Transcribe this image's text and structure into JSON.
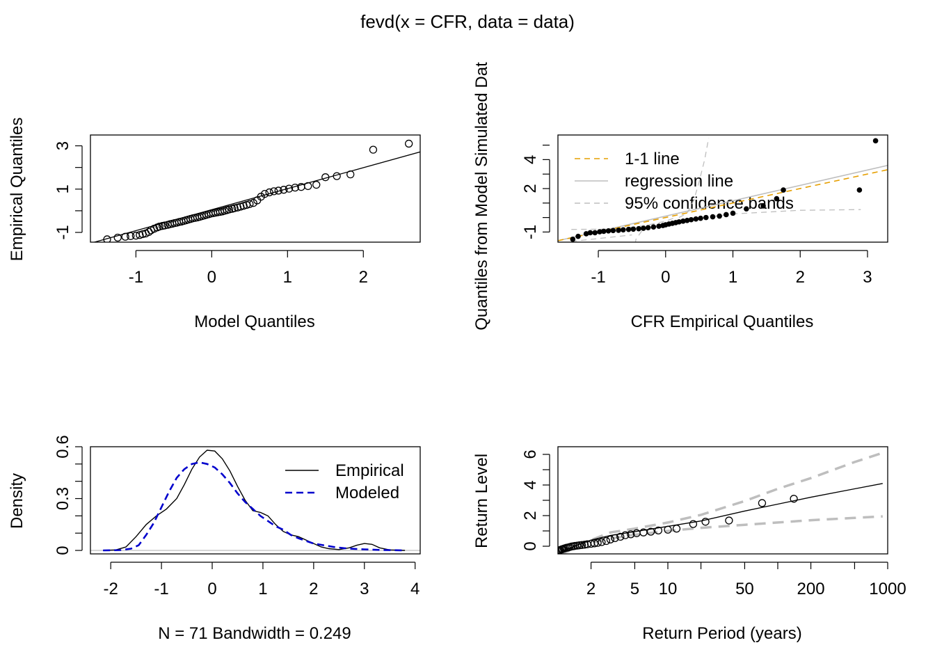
{
  "title": "fevd(x = CFR, data = data)",
  "colors": {
    "one_to_one": "#E69F00",
    "regression": "#BEBEBE",
    "bands": "#BEBEBE",
    "modeled": "#0000CD",
    "points": "#000000"
  },
  "chart_data": [
    {
      "type": "scatter",
      "id": "qq_model",
      "xlabel": "Model Quantiles",
      "ylabel": "Empirical Quantiles",
      "xlim": [
        -1.6,
        2.75
      ],
      "ylim": [
        -1.45,
        3.5
      ],
      "xticks": [
        -1,
        0,
        1,
        2
      ],
      "yticks": [
        -1,
        1,
        3
      ],
      "line": [
        [
          -1.6,
          -1.5
        ],
        [
          2.75,
          2.72
        ]
      ],
      "points": [
        [
          -1.38,
          -1.32
        ],
        [
          -1.24,
          -1.24
        ],
        [
          -1.14,
          -1.2
        ],
        [
          -1.07,
          -1.17
        ],
        [
          -1.0,
          -1.15
        ],
        [
          -0.95,
          -1.12
        ],
        [
          -0.91,
          -1.08
        ],
        [
          -0.87,
          -1.05
        ],
        [
          -0.83,
          -0.98
        ],
        [
          -0.8,
          -0.9
        ],
        [
          -0.76,
          -0.83
        ],
        [
          -0.72,
          -0.77
        ],
        [
          -0.69,
          -0.73
        ],
        [
          -0.65,
          -0.7
        ],
        [
          -0.62,
          -0.68
        ],
        [
          -0.58,
          -0.65
        ],
        [
          -0.55,
          -0.62
        ],
        [
          -0.52,
          -0.6
        ],
        [
          -0.49,
          -0.57
        ],
        [
          -0.46,
          -0.55
        ],
        [
          -0.43,
          -0.52
        ],
        [
          -0.4,
          -0.5
        ],
        [
          -0.37,
          -0.47
        ],
        [
          -0.34,
          -0.44
        ],
        [
          -0.31,
          -0.41
        ],
        [
          -0.28,
          -0.38
        ],
        [
          -0.25,
          -0.35
        ],
        [
          -0.22,
          -0.33
        ],
        [
          -0.19,
          -0.31
        ],
        [
          -0.16,
          -0.28
        ],
        [
          -0.13,
          -0.25
        ],
        [
          -0.1,
          -0.22
        ],
        [
          -0.07,
          -0.19
        ],
        [
          -0.04,
          -0.16
        ],
        [
          -0.01,
          -0.13
        ],
        [
          0.02,
          -0.11
        ],
        [
          0.05,
          -0.09
        ],
        [
          0.08,
          -0.07
        ],
        [
          0.11,
          -0.05
        ],
        [
          0.14,
          -0.03
        ],
        [
          0.17,
          0.0
        ],
        [
          0.2,
          0.03
        ],
        [
          0.23,
          0.06
        ],
        [
          0.27,
          0.09
        ],
        [
          0.3,
          0.12
        ],
        [
          0.34,
          0.15
        ],
        [
          0.38,
          0.19
        ],
        [
          0.42,
          0.23
        ],
        [
          0.46,
          0.27
        ],
        [
          0.5,
          0.31
        ],
        [
          0.55,
          0.36
        ],
        [
          0.6,
          0.48
        ],
        [
          0.65,
          0.65
        ],
        [
          0.7,
          0.78
        ],
        [
          0.76,
          0.85
        ],
        [
          0.82,
          0.9
        ],
        [
          0.88,
          0.93
        ],
        [
          0.95,
          0.97
        ],
        [
          1.02,
          1.02
        ],
        [
          1.1,
          1.07
        ],
        [
          1.18,
          1.1
        ],
        [
          1.27,
          1.14
        ],
        [
          1.38,
          1.2
        ],
        [
          1.5,
          1.55
        ],
        [
          1.65,
          1.6
        ],
        [
          1.83,
          1.68
        ],
        [
          2.13,
          2.82
        ],
        [
          2.6,
          3.1
        ]
      ]
    },
    {
      "type": "scatter",
      "id": "qq_sim",
      "xlabel": "CFR Empirical Quantiles",
      "ylabel": "Quantiles from Model Simulated Dat",
      "xlim": [
        -1.6,
        3.3
      ],
      "ylim": [
        -1.7,
        5.7
      ],
      "xticks": [
        -1,
        0,
        1,
        2,
        3
      ],
      "yticks": [
        -1,
        2,
        4
      ],
      "legend": [
        "1-1 line",
        "regression line",
        "95% confidence bands"
      ],
      "points": [
        [
          -1.38,
          -1.5
        ],
        [
          -1.3,
          -1.3
        ],
        [
          -1.18,
          -1.12
        ],
        [
          -1.12,
          -1.05
        ],
        [
          -1.05,
          -1.05
        ],
        [
          -0.98,
          -0.98
        ],
        [
          -0.92,
          -0.95
        ],
        [
          -0.85,
          -0.92
        ],
        [
          -0.78,
          -0.9
        ],
        [
          -0.7,
          -0.88
        ],
        [
          -0.63,
          -0.85
        ],
        [
          -0.55,
          -0.82
        ],
        [
          -0.48,
          -0.8
        ],
        [
          -0.4,
          -0.77
        ],
        [
          -0.33,
          -0.74
        ],
        [
          -0.26,
          -0.7
        ],
        [
          -0.18,
          -0.65
        ],
        [
          -0.1,
          -0.6
        ],
        [
          -0.04,
          -0.55
        ],
        [
          0.0,
          -0.5
        ],
        [
          0.05,
          -0.45
        ],
        [
          0.1,
          -0.4
        ],
        [
          0.15,
          -0.35
        ],
        [
          0.2,
          -0.3
        ],
        [
          0.26,
          -0.25
        ],
        [
          0.32,
          -0.2
        ],
        [
          0.38,
          -0.15
        ],
        [
          0.45,
          -0.1
        ],
        [
          0.52,
          -0.05
        ],
        [
          0.6,
          0.0
        ],
        [
          0.7,
          0.05
        ],
        [
          0.8,
          0.1
        ],
        [
          0.9,
          0.2
        ],
        [
          1.0,
          0.3
        ],
        [
          1.2,
          0.6
        ],
        [
          1.45,
          0.8
        ],
        [
          1.65,
          1.3
        ],
        [
          1.75,
          1.9
        ],
        [
          2.88,
          1.9
        ],
        [
          3.12,
          5.3
        ]
      ],
      "one_to_one": [
        [
          -1.6,
          -1.6
        ],
        [
          3.3,
          3.3
        ]
      ],
      "regression": [
        [
          -1.6,
          -1.6
        ],
        [
          3.3,
          3.6
        ]
      ],
      "band_upper": [
        [
          0.2,
          0.0
        ],
        [
          0.32,
          0.3
        ],
        [
          0.42,
          1.2
        ],
        [
          0.5,
          2.5
        ],
        [
          0.58,
          4.0
        ],
        [
          0.64,
          5.5
        ]
      ],
      "band_lower": [
        [
          -0.48,
          -2.5
        ],
        [
          -0.44,
          -1.5
        ],
        [
          -0.35,
          -0.9
        ],
        [
          -0.2,
          -0.65
        ],
        [
          0.1,
          -0.35
        ],
        [
          0.5,
          -0.05
        ],
        [
          1.0,
          0.25
        ],
        [
          2.0,
          0.5
        ],
        [
          2.9,
          0.55
        ]
      ],
      "band_upper_left": [
        [
          -1.4,
          -0.82
        ],
        [
          -0.9,
          -0.8
        ],
        [
          -0.6,
          -0.72
        ],
        [
          -0.3,
          -0.55
        ],
        [
          0.0,
          -0.25
        ],
        [
          0.15,
          0.0
        ]
      ],
      "band_lower_left": [
        [
          -1.4,
          -1.65
        ],
        [
          -1.0,
          -1.45
        ],
        [
          -0.7,
          -1.3
        ],
        [
          -0.5,
          -1.2
        ]
      ]
    },
    {
      "type": "line",
      "id": "density",
      "xlabel": "N = 71   Bandwidth = 0.249",
      "ylabel": "Density",
      "xlim": [
        -2.4,
        4.1
      ],
      "ylim": [
        -0.02,
        0.6
      ],
      "xticks": [
        -2,
        -1,
        0,
        1,
        2,
        3,
        4
      ],
      "yticks": [
        0.0,
        0.3,
        0.6
      ],
      "yticks_minor": [
        0.1,
        0.2,
        0.4,
        0.5
      ],
      "legend": [
        "Empirical",
        "Modeled"
      ],
      "series": [
        {
          "name": "Empirical",
          "points": [
            [
              -2.15,
              0
            ],
            [
              -1.9,
              0.003
            ],
            [
              -1.7,
              0.02
            ],
            [
              -1.5,
              0.08
            ],
            [
              -1.3,
              0.15
            ],
            [
              -1.1,
              0.2
            ],
            [
              -0.9,
              0.24
            ],
            [
              -0.7,
              0.3
            ],
            [
              -0.55,
              0.38
            ],
            [
              -0.4,
              0.47
            ],
            [
              -0.25,
              0.54
            ],
            [
              -0.1,
              0.58
            ],
            [
              0.05,
              0.575
            ],
            [
              0.2,
              0.53
            ],
            [
              0.35,
              0.46
            ],
            [
              0.5,
              0.37
            ],
            [
              0.65,
              0.29
            ],
            [
              0.8,
              0.23
            ],
            [
              0.95,
              0.22
            ],
            [
              1.1,
              0.2
            ],
            [
              1.25,
              0.15
            ],
            [
              1.4,
              0.11
            ],
            [
              1.55,
              0.09
            ],
            [
              1.7,
              0.08
            ],
            [
              1.85,
              0.06
            ],
            [
              2.0,
              0.04
            ],
            [
              2.15,
              0.02
            ],
            [
              2.3,
              0.01
            ],
            [
              2.5,
              0.005
            ],
            [
              2.7,
              0.015
            ],
            [
              2.85,
              0.03
            ],
            [
              3.0,
              0.04
            ],
            [
              3.15,
              0.035
            ],
            [
              3.3,
              0.015
            ],
            [
              3.5,
              0.003
            ],
            [
              3.8,
              0
            ]
          ]
        },
        {
          "name": "Modeled",
          "points": [
            [
              -2.15,
              0
            ],
            [
              -1.8,
              0.002
            ],
            [
              -1.6,
              0.01
            ],
            [
              -1.45,
              0.03
            ],
            [
              -1.3,
              0.09
            ],
            [
              -1.15,
              0.16
            ],
            [
              -1.0,
              0.25
            ],
            [
              -0.85,
              0.34
            ],
            [
              -0.7,
              0.42
            ],
            [
              -0.55,
              0.47
            ],
            [
              -0.4,
              0.5
            ],
            [
              -0.25,
              0.51
            ],
            [
              -0.1,
              0.5
            ],
            [
              0.05,
              0.48
            ],
            [
              0.2,
              0.44
            ],
            [
              0.35,
              0.39
            ],
            [
              0.5,
              0.33
            ],
            [
              0.65,
              0.28
            ],
            [
              0.8,
              0.24
            ],
            [
              0.95,
              0.2
            ],
            [
              1.1,
              0.17
            ],
            [
              1.25,
              0.14
            ],
            [
              1.4,
              0.12
            ],
            [
              1.55,
              0.09
            ],
            [
              1.7,
              0.07
            ],
            [
              1.85,
              0.055
            ],
            [
              2.0,
              0.04
            ],
            [
              2.2,
              0.03
            ],
            [
              2.4,
              0.02
            ],
            [
              2.6,
              0.013
            ],
            [
              2.8,
              0.009
            ],
            [
              3.0,
              0.006
            ],
            [
              3.3,
              0.003
            ],
            [
              3.8,
              0.0
            ]
          ]
        }
      ]
    },
    {
      "type": "scatter",
      "id": "return_level",
      "xlabel": "Return Period (years)",
      "ylabel": "Return Level",
      "xlog": true,
      "xlim": [
        1.0,
        1000
      ],
      "ylim": [
        -0.5,
        6.5
      ],
      "xticks": [
        2,
        5,
        10,
        50,
        200,
        1000
      ],
      "yticks": [
        0,
        2,
        4,
        6
      ],
      "xticks_minor": [
        20,
        100,
        500
      ],
      "estimate": [
        [
          1.02,
          -0.5
        ],
        [
          1.1,
          -0.3
        ],
        [
          1.3,
          -0.1
        ],
        [
          1.6,
          0.15
        ],
        [
          2,
          0.4
        ],
        [
          3,
          0.7
        ],
        [
          5,
          0.95
        ],
        [
          10,
          1.3
        ],
        [
          20,
          1.65
        ],
        [
          50,
          2.3
        ],
        [
          100,
          2.75
        ],
        [
          200,
          3.2
        ],
        [
          500,
          3.75
        ],
        [
          900,
          4.1
        ]
      ],
      "ci_upper": [
        [
          1.02,
          -0.45
        ],
        [
          1.5,
          0.1
        ],
        [
          2,
          0.4
        ],
        [
          3,
          0.9
        ],
        [
          5,
          1.15
        ],
        [
          10,
          1.55
        ],
        [
          20,
          2.05
        ],
        [
          50,
          2.95
        ],
        [
          100,
          3.75
        ],
        [
          200,
          4.45
        ],
        [
          500,
          5.5
        ],
        [
          900,
          6.1
        ]
      ],
      "ci_lower": [
        [
          1.02,
          -0.55
        ],
        [
          1.5,
          -0.1
        ],
        [
          2,
          0.2
        ],
        [
          3,
          0.5
        ],
        [
          5,
          0.75
        ],
        [
          10,
          1.0
        ],
        [
          20,
          1.2
        ],
        [
          50,
          1.4
        ],
        [
          100,
          1.55
        ],
        [
          200,
          1.7
        ],
        [
          500,
          1.85
        ],
        [
          900,
          1.95
        ]
      ],
      "points": [
        [
          1.01,
          -0.32
        ],
        [
          1.03,
          -0.27
        ],
        [
          1.05,
          -0.24
        ],
        [
          1.08,
          -0.21
        ],
        [
          1.1,
          -0.19
        ],
        [
          1.13,
          -0.16
        ],
        [
          1.16,
          -0.13
        ],
        [
          1.2,
          -0.1
        ],
        [
          1.24,
          -0.08
        ],
        [
          1.28,
          -0.05
        ],
        [
          1.33,
          -0.02
        ],
        [
          1.38,
          0.0
        ],
        [
          1.43,
          0.02
        ],
        [
          1.5,
          0.04
        ],
        [
          1.57,
          0.06
        ],
        [
          1.65,
          0.08
        ],
        [
          1.75,
          0.1
        ],
        [
          1.85,
          0.13
        ],
        [
          2.0,
          0.16
        ],
        [
          2.15,
          0.19
        ],
        [
          2.3,
          0.22
        ],
        [
          2.5,
          0.27
        ],
        [
          2.75,
          0.34
        ],
        [
          3.0,
          0.44
        ],
        [
          3.3,
          0.53
        ],
        [
          3.7,
          0.62
        ],
        [
          4.1,
          0.72
        ],
        [
          4.6,
          0.78
        ],
        [
          5.2,
          0.85
        ],
        [
          6.0,
          0.9
        ],
        [
          7.0,
          0.95
        ],
        [
          8.2,
          1.03
        ],
        [
          10.0,
          1.08
        ],
        [
          12.0,
          1.15
        ],
        [
          17.0,
          1.45
        ],
        [
          22.0,
          1.6
        ],
        [
          36.0,
          1.68
        ],
        [
          72.0,
          2.82
        ],
        [
          140.0,
          3.1
        ]
      ]
    }
  ]
}
